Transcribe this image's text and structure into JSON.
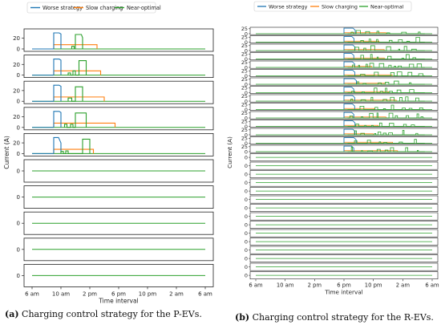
{
  "colors": {
    "worse": "#1f77b4",
    "slow": "#ff7f0e",
    "near": "#2ca02c"
  },
  "chart_data": [
    {
      "type": "line",
      "ylabel": "Current (A)",
      "xlabel": "Time interval",
      "legend": [
        "Worse strategy",
        "Slow charging",
        "Near-optimal"
      ],
      "legend_placement": "top-left",
      "xticks": [
        "6 am",
        "10 am",
        "2 pm",
        "6 pm",
        "10 pm",
        "2 am",
        "6 am"
      ],
      "xlim": [
        "6 am",
        "6 am (+1 day)"
      ],
      "num_subplots": 10,
      "yticks_active": [
        0,
        20
      ],
      "yticks_idle": [
        0
      ],
      "ylim_active": [
        0,
        33
      ],
      "series_per_subplot": [
        {
          "worse": [
            [
              "9 am",
              0
            ],
            [
              "9 am",
              30
            ],
            [
              "9:45 am",
              30
            ],
            [
              "10 am",
              28
            ],
            [
              "10 am",
              0
            ]
          ],
          "near": [
            [
              "11:30 am",
              0
            ],
            [
              "11:30 am",
              5
            ],
            [
              "11:50 am",
              5
            ],
            [
              "11:50 am",
              0
            ],
            [
              "12 pm",
              0
            ],
            [
              "12 pm",
              27
            ],
            [
              "12:50 pm",
              27
            ],
            [
              "1 pm",
              21
            ],
            [
              "1 pm",
              0
            ]
          ],
          "slow": [
            [
              "9 am",
              0
            ],
            [
              "9 am",
              8
            ],
            [
              "3 pm",
              8
            ],
            [
              "3 pm",
              0
            ]
          ]
        },
        {
          "worse": [
            [
              "9 am",
              0
            ],
            [
              "9 am",
              30
            ],
            [
              "9:45 am",
              30
            ],
            [
              "10 am",
              28
            ],
            [
              "10 am",
              0
            ]
          ],
          "near": [
            [
              "11 am",
              0
            ],
            [
              "11 am",
              4
            ],
            [
              "11:20 am",
              4
            ],
            [
              "11:20 am",
              0
            ],
            [
              "11:40 am",
              0
            ],
            [
              "11:40 am",
              8
            ],
            [
              "12 pm",
              8
            ],
            [
              "12 pm",
              0
            ],
            [
              "12:30 pm",
              0
            ],
            [
              "12:30 pm",
              27
            ],
            [
              "1:30 pm",
              27
            ],
            [
              "1:30 pm",
              0
            ]
          ],
          "slow": [
            [
              "9 am",
              0
            ],
            [
              "9 am",
              8
            ],
            [
              "3:30 pm",
              8
            ],
            [
              "3:30 pm",
              0
            ]
          ]
        },
        {
          "worse": [
            [
              "9 am",
              0
            ],
            [
              "9 am",
              30
            ],
            [
              "9:45 am",
              30
            ],
            [
              "10 am",
              28
            ],
            [
              "10 am",
              0
            ]
          ],
          "near": [
            [
              "11 am",
              0
            ],
            [
              "11 am",
              6
            ],
            [
              "11:30 am",
              6
            ],
            [
              "11:30 am",
              0
            ],
            [
              "12 pm",
              0
            ],
            [
              "12 pm",
              27
            ],
            [
              "1 pm",
              27
            ],
            [
              "1 pm",
              0
            ]
          ],
          "slow": [
            [
              "9 am",
              0
            ],
            [
              "9 am",
              8
            ],
            [
              "4 pm",
              8
            ],
            [
              "4 pm",
              0
            ]
          ]
        },
        {
          "worse": [
            [
              "9 am",
              0
            ],
            [
              "9 am",
              30
            ],
            [
              "9:45 am",
              30
            ],
            [
              "10 am",
              28
            ],
            [
              "10 am",
              0
            ]
          ],
          "near": [
            [
              "10:30 am",
              0
            ],
            [
              "10:30 am",
              6
            ],
            [
              "10:50 am",
              6
            ],
            [
              "10:50 am",
              0
            ],
            [
              "11:20 am",
              0
            ],
            [
              "11:20 am",
              6
            ],
            [
              "11:40 am",
              6
            ],
            [
              "11:40 am",
              0
            ],
            [
              "12 pm",
              0
            ],
            [
              "12 pm",
              27
            ],
            [
              "1:30 pm",
              27
            ],
            [
              "1:30 pm",
              0
            ]
          ],
          "slow": [
            [
              "9 am",
              0
            ],
            [
              "9 am",
              8
            ],
            [
              "5:30 pm",
              8
            ],
            [
              "5:30 pm",
              0
            ]
          ]
        },
        {
          "worse": [
            [
              "9 am",
              0
            ],
            [
              "9 am",
              30
            ],
            [
              "9:40 am",
              30
            ],
            [
              "10 am",
              20
            ],
            [
              "10 am",
              0
            ]
          ],
          "near": [
            [
              "10 am",
              0
            ],
            [
              "10 am",
              4
            ],
            [
              "10:20 am",
              4
            ],
            [
              "10:20 am",
              0
            ],
            [
              "10:40 am",
              0
            ],
            [
              "10:40 am",
              5
            ],
            [
              "11 am",
              5
            ],
            [
              "11 am",
              0
            ],
            [
              "1 pm",
              0
            ],
            [
              "1 pm",
              27
            ],
            [
              "2 pm",
              27
            ],
            [
              "2 pm",
              0
            ]
          ],
          "slow": [
            [
              "9 am",
              0
            ],
            [
              "9 am",
              8
            ],
            [
              "2:30 pm",
              8
            ],
            [
              "2:30 pm",
              0
            ]
          ]
        },
        {
          "near": []
        },
        {
          "near": []
        },
        {
          "near": []
        },
        {
          "near": []
        },
        {
          "near": []
        }
      ]
    },
    {
      "type": "line",
      "ylabel": "Current (A)",
      "xlabel": "Time interval",
      "legend": [
        "Worse strategy",
        "Slow charging",
        "Near-optimal"
      ],
      "legend_placement": "top",
      "xticks": [
        "6 am",
        "10 am",
        "2 pm",
        "6 pm",
        "10 pm",
        "2 am",
        "6 am"
      ],
      "num_subplots": 30,
      "yticks_active": [
        0,
        25
      ],
      "yticks_idle": [
        0
      ],
      "ylim_active": [
        0,
        30
      ],
      "active_subplots": 15,
      "worse_window": [
        "6 pm",
        "7:30 pm",
        28
      ],
      "slow_level": 5,
      "near_peak": 25
    }
  ],
  "captions": {
    "a_label": "(a)",
    "a_text": " Charging control strategy for the P-EVs.",
    "b_label": "(b)",
    "b_text": " Charging control strategy for the R-EVs."
  }
}
